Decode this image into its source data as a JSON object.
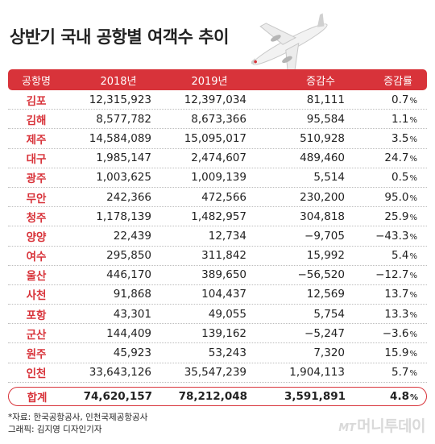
{
  "title": "상반기 국내 공항별 여객수 추이",
  "chart_data": {
    "type": "table",
    "headers": [
      "공항명",
      "2018년",
      "2019년",
      "증감수",
      "증감률"
    ],
    "rows": [
      {
        "name": "김포",
        "y2018": "12,315,923",
        "y2019": "12,397,034",
        "diff": "81,111",
        "rate": "0.7"
      },
      {
        "name": "김해",
        "y2018": "8,577,782",
        "y2019": "8,673,366",
        "diff": "95,584",
        "rate": "1.1"
      },
      {
        "name": "제주",
        "y2018": "14,584,089",
        "y2019": "15,095,017",
        "diff": "510,928",
        "rate": "3.5"
      },
      {
        "name": "대구",
        "y2018": "1,985,147",
        "y2019": "2,474,607",
        "diff": "489,460",
        "rate": "24.7"
      },
      {
        "name": "광주",
        "y2018": "1,003,625",
        "y2019": "1,009,139",
        "diff": "5,514",
        "rate": "0.5"
      },
      {
        "name": "무안",
        "y2018": "242,366",
        "y2019": "472,566",
        "diff": "230,200",
        "rate": "95.0"
      },
      {
        "name": "청주",
        "y2018": "1,178,139",
        "y2019": "1,482,957",
        "diff": "304,818",
        "rate": "25.9"
      },
      {
        "name": "양양",
        "y2018": "22,439",
        "y2019": "12,734",
        "diff": "−9,705",
        "rate": "−43.3"
      },
      {
        "name": "여수",
        "y2018": "295,850",
        "y2019": "311,842",
        "diff": "15,992",
        "rate": "5.4"
      },
      {
        "name": "울산",
        "y2018": "446,170",
        "y2019": "389,650",
        "diff": "−56,520",
        "rate": "−12.7"
      },
      {
        "name": "사천",
        "y2018": "91,868",
        "y2019": "104,437",
        "diff": "12,569",
        "rate": "13.7"
      },
      {
        "name": "포항",
        "y2018": "43,301",
        "y2019": "49,055",
        "diff": "5,754",
        "rate": "13.3"
      },
      {
        "name": "군산",
        "y2018": "144,409",
        "y2019": "139,162",
        "diff": "−5,247",
        "rate": "−3.6"
      },
      {
        "name": "원주",
        "y2018": "45,923",
        "y2019": "53,243",
        "diff": "7,320",
        "rate": "15.9"
      },
      {
        "name": "인천",
        "y2018": "33,643,126",
        "y2019": "35,547,239",
        "diff": "1,904,113",
        "rate": "5.7"
      }
    ],
    "total": {
      "name": "합계",
      "y2018": "74,620,157",
      "y2019": "78,212,048",
      "diff": "3,591,891",
      "rate": "4.8"
    },
    "pct_unit": "%"
  },
  "footer": {
    "source": "*자료: 한국공항공사, 인천국제공항공사",
    "graphic": "그래픽: 김지영 디자인기자"
  },
  "logo": {
    "mt": "MT",
    "name": "머니투데이"
  },
  "colors": {
    "accent": "#d8333a"
  }
}
